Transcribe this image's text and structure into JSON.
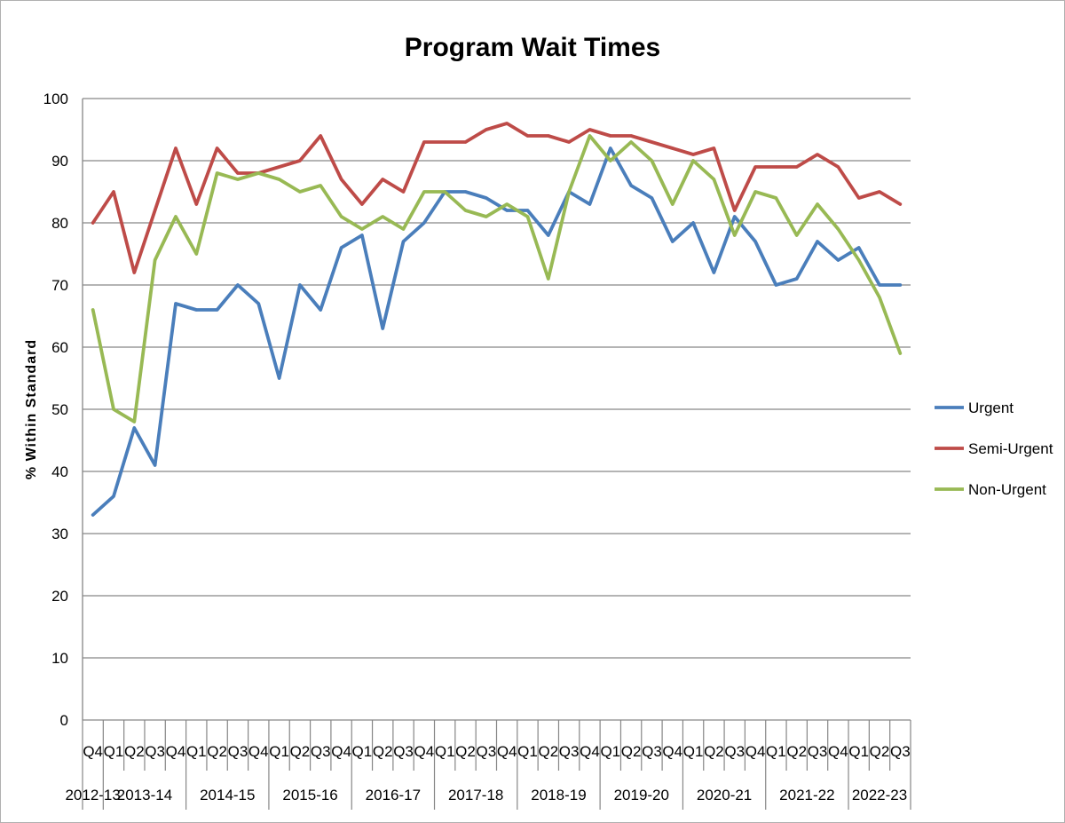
{
  "chart_data": {
    "type": "line",
    "title": "Program Wait Times",
    "xlabel": "",
    "ylabel": "% Within Standard",
    "ylim": [
      0,
      100
    ],
    "yticks": [
      0,
      10,
      20,
      30,
      40,
      50,
      60,
      70,
      80,
      90,
      100
    ],
    "grid": "horizontal",
    "legend_position": "right",
    "categories": [
      "Q4",
      "Q1",
      "Q2",
      "Q3",
      "Q4",
      "Q1",
      "Q2",
      "Q3",
      "Q4",
      "Q1",
      "Q2",
      "Q3",
      "Q4",
      "Q1",
      "Q2",
      "Q3",
      "Q4",
      "Q1",
      "Q2",
      "Q3",
      "Q4",
      "Q1",
      "Q2",
      "Q3",
      "Q4",
      "Q1",
      "Q2",
      "Q3",
      "Q4",
      "Q1",
      "Q2",
      "Q3",
      "Q4",
      "Q1",
      "Q2",
      "Q3",
      "Q4",
      "Q1",
      "Q2",
      "Q3"
    ],
    "year_groups": [
      {
        "label": "2012-13",
        "start": 0,
        "count": 1
      },
      {
        "label": "2013-14",
        "start": 1,
        "count": 4
      },
      {
        "label": "2014-15",
        "start": 5,
        "count": 4
      },
      {
        "label": "2015-16",
        "start": 9,
        "count": 4
      },
      {
        "label": "2016-17",
        "start": 13,
        "count": 4
      },
      {
        "label": "2017-18",
        "start": 17,
        "count": 4
      },
      {
        "label": "2018-19",
        "start": 21,
        "count": 4
      },
      {
        "label": "2019-20",
        "start": 25,
        "count": 4
      },
      {
        "label": "2020-21",
        "start": 29,
        "count": 4
      },
      {
        "label": "2021-22",
        "start": 33,
        "count": 4
      },
      {
        "label": "2022-23",
        "start": 37,
        "count": 3
      }
    ],
    "series": [
      {
        "name": "Urgent",
        "color": "#4a7ebb",
        "values": [
          33,
          36,
          47,
          41,
          67,
          66,
          66,
          70,
          67,
          55,
          70,
          66,
          76,
          78,
          63,
          77,
          80,
          85,
          85,
          84,
          82,
          82,
          78,
          85,
          83,
          92,
          86,
          84,
          77,
          80,
          72,
          81,
          77,
          70,
          71,
          77,
          74,
          76,
          70,
          70
        ]
      },
      {
        "name": "Semi-Urgent",
        "color": "#be4b48",
        "values": [
          80,
          85,
          72,
          82,
          92,
          83,
          92,
          88,
          88,
          89,
          90,
          94,
          87,
          83,
          87,
          85,
          93,
          93,
          93,
          95,
          96,
          94,
          94,
          93,
          95,
          94,
          94,
          93,
          92,
          91,
          92,
          82,
          89,
          89,
          89,
          91,
          89,
          84,
          85,
          83
        ]
      },
      {
        "name": "Non-Urgent",
        "color": "#98b954",
        "values": [
          66,
          50,
          48,
          74,
          81,
          75,
          88,
          87,
          88,
          87,
          85,
          86,
          81,
          79,
          81,
          79,
          85,
          85,
          82,
          81,
          83,
          81,
          71,
          85,
          94,
          90,
          93,
          90,
          83,
          90,
          87,
          78,
          85,
          84,
          78,
          83,
          79,
          74,
          68,
          59
        ]
      }
    ]
  }
}
